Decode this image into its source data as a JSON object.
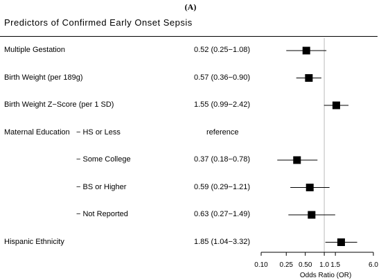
{
  "panel_label": "(A)",
  "title": "Predictors of Confirmed Early Onset Sepsis",
  "rows": [
    {
      "label": "Multiple Gestation",
      "sublabel": "",
      "value_text": "0.52 (0.25−1.08)"
    },
    {
      "label": "Birth Weight (per 189g)",
      "sublabel": "",
      "value_text": "0.57 (0.36−0.90)"
    },
    {
      "label": "Birth Weight Z−Score (per 1 SD)",
      "sublabel": "",
      "value_text": "1.55 (0.99−2.42)"
    },
    {
      "label": "Maternal Education",
      "sublabel": "− HS or Less",
      "value_text": "reference"
    },
    {
      "label": "",
      "sublabel": "− Some College",
      "value_text": "0.37 (0.18−0.78)"
    },
    {
      "label": "",
      "sublabel": "− BS or Higher",
      "value_text": "0.59 (0.29−1.21)"
    },
    {
      "label": "",
      "sublabel": "− Not Reported",
      "value_text": "0.63 (0.27−1.49)"
    },
    {
      "label": "Hispanic Ethnicity",
      "sublabel": "",
      "value_text": "1.85 (1.04−3.32)"
    }
  ],
  "chart_data": {
    "type": "forest",
    "scale": "log",
    "xlabel": "Odds Ratio (OR)",
    "xlim": [
      0.1,
      6.0
    ],
    "reference_line": 1.0,
    "ticks": [
      {
        "value": 0.1,
        "label": "0.10"
      },
      {
        "value": 0.25,
        "label": "0.25"
      },
      {
        "value": 0.5,
        "label": "0.50"
      },
      {
        "value": 1.0,
        "label": "1.0"
      },
      {
        "value": 1.5,
        "label": "1.5"
      },
      {
        "value": 6.0,
        "label": "6.0"
      }
    ],
    "estimates": [
      {
        "or": 0.52,
        "lo": 0.25,
        "hi": 1.08
      },
      {
        "or": 0.57,
        "lo": 0.36,
        "hi": 0.9
      },
      {
        "or": 1.55,
        "lo": 0.99,
        "hi": 2.42
      },
      null,
      {
        "or": 0.37,
        "lo": 0.18,
        "hi": 0.78
      },
      {
        "or": 0.59,
        "lo": 0.29,
        "hi": 1.21
      },
      {
        "or": 0.63,
        "lo": 0.27,
        "hi": 1.49
      },
      {
        "or": 1.85,
        "lo": 1.04,
        "hi": 3.32
      }
    ],
    "colors": {
      "marker": "#000000",
      "reference_line": "#bbbbbb"
    }
  }
}
